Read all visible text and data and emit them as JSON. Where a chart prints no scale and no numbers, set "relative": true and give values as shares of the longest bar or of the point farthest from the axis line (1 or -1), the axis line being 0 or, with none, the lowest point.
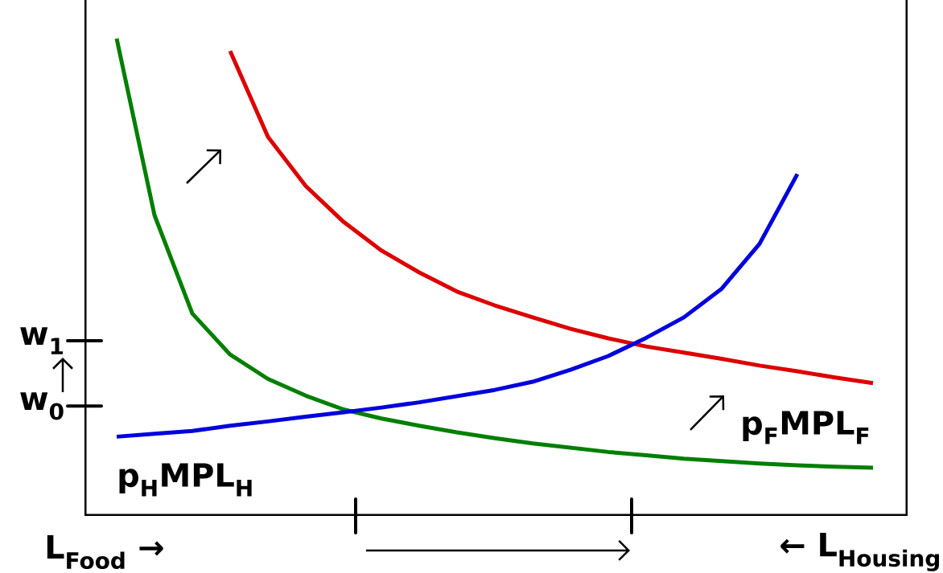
{
  "chart_data": {
    "type": "line",
    "relative": true,
    "marker": "none",
    "categories": [
      null,
      null,
      null,
      null,
      null,
      null,
      null,
      null,
      null,
      null,
      null,
      null,
      null,
      null,
      null,
      null,
      null,
      null,
      null,
      null,
      null
    ],
    "series": [
      {
        "color": "#007f00",
        "values": [
          1,
          0.63,
          0.424,
          0.338,
          0.287,
          0.252,
          0.223,
          0.204,
          0.189,
          0.175,
          0.163,
          0.152,
          0.143,
          0.134,
          0.127,
          0.12,
          0.115,
          0.11,
          0.106,
          0.103,
          0.101
        ]
      },
      {
        "color": "#dd0000",
        "values": [
          null,
          null,
          null,
          0.974,
          0.794,
          0.691,
          0.616,
          0.556,
          0.51,
          0.47,
          0.441,
          0.416,
          0.392,
          0.372,
          0.355,
          0.342,
          0.329,
          0.315,
          0.303,
          0.29,
          0.278
        ]
      },
      {
        "color": "#0000dd",
        "values": [
          0.166,
          0.172,
          0.178,
          0.189,
          0.198,
          0.208,
          0.217,
          0.227,
          0.238,
          0.251,
          0.264,
          0.281,
          0.306,
          0.335,
          0.373,
          0.416,
          0.476,
          0.57,
          0.716,
          null,
          null
        ]
      }
    ],
    "ref_lines": [
      {
        "axis": "y",
        "value": 0.23,
        "label": "w$_{0}$"
      },
      {
        "axis": "y",
        "value": 0.367,
        "label": "w$_{1}$"
      }
    ],
    "annotations": [
      "L$_{Food}$ →",
      "← L$_{Housing}$",
      "p$_{H}$MPL$_{H}$",
      "p$_{F}$MPL$_{F}$"
    ]
  }
}
